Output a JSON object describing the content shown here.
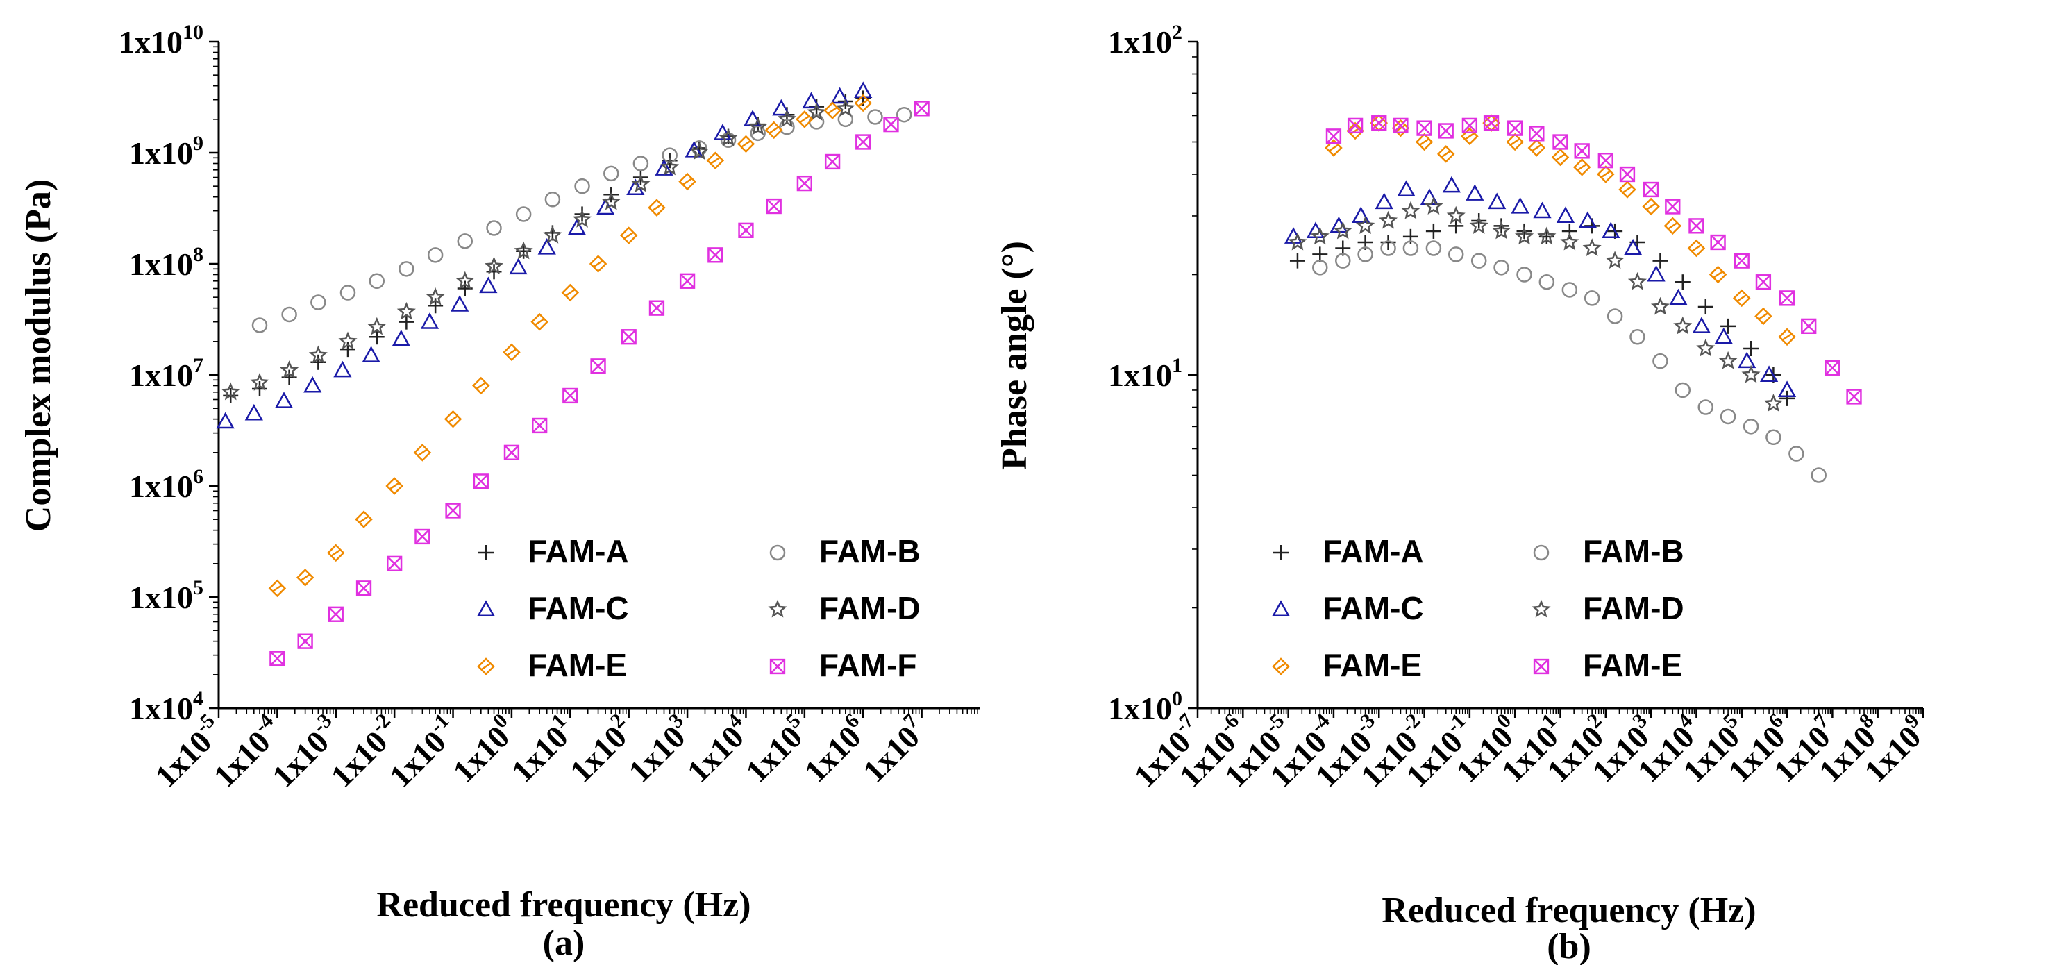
{
  "chart_data": [
    {
      "panel": "(a)",
      "type": "scatter",
      "xlabel": "Reduced frequency (Hz)",
      "ylabel": "Complex modulus (Pa)",
      "xscale": "log",
      "yscale": "log",
      "xlim": [
        1e-05,
        100000000.0
      ],
      "ylim": [
        10000.0,
        10000000000.0
      ],
      "x_tick_exps": [
        -5,
        -4,
        -3,
        -2,
        -1,
        0,
        1,
        2,
        3,
        4,
        5,
        6,
        7
      ],
      "y_tick_exps": [
        4,
        5,
        6,
        7,
        8,
        9,
        10
      ],
      "legend_placement": "bottom-right",
      "series": [
        {
          "name": "FAM-A",
          "marker": "plus",
          "color": "#222222",
          "x": [
            1.6e-05,
            5e-05,
            0.00016,
            0.0005,
            0.0016,
            0.005,
            0.016,
            0.05,
            0.16,
            0.5,
            1.6,
            5,
            16,
            50,
            160,
            500,
            1600,
            5000,
            16000,
            50000,
            160000,
            500000,
            1000000
          ],
          "y": [
            6500000.0,
            7500000.0,
            9500000.0,
            13000000.0,
            17000000.0,
            22000000.0,
            30000000.0,
            42000000.0,
            60000000.0,
            85000000.0,
            130000000.0,
            190000000.0,
            280000000.0,
            420000000.0,
            600000000.0,
            850000000.0,
            1100000000.0,
            1400000000.0,
            1800000000.0,
            2200000000.0,
            2600000000.0,
            2900000000.0,
            3100000000.0
          ]
        },
        {
          "name": "FAM-B",
          "marker": "circle",
          "color": "#888888",
          "x": [
            5e-05,
            0.00016,
            0.0005,
            0.0016,
            0.005,
            0.016,
            0.05,
            0.16,
            0.5,
            1.6,
            5,
            16,
            50,
            160,
            500,
            1600,
            5000,
            16000,
            50000,
            160000,
            500000,
            1600000,
            5000000
          ],
          "y": [
            28000000.0,
            35000000.0,
            45000000.0,
            55000000.0,
            70000000.0,
            90000000.0,
            120000000.0,
            160000000.0,
            210000000.0,
            280000000.0,
            380000000.0,
            500000000.0,
            650000000.0,
            800000000.0,
            950000000.0,
            1100000000.0,
            1300000000.0,
            1500000000.0,
            1700000000.0,
            1900000000.0,
            2000000000.0,
            2100000000.0,
            2200000000.0
          ]
        },
        {
          "name": "FAM-C",
          "marker": "triangle",
          "color": "#1a1aa8",
          "x": [
            1.3e-05,
            4e-05,
            0.00013,
            0.0004,
            0.0013,
            0.004,
            0.013,
            0.04,
            0.13,
            0.4,
            1.3,
            4,
            13,
            40,
            130,
            400,
            1300,
            4000,
            13000,
            40000,
            130000,
            400000,
            1000000
          ],
          "y": [
            3800000.0,
            4500000.0,
            5800000.0,
            8000000.0,
            11000000.0,
            15000000.0,
            21000000.0,
            30000000.0,
            43000000.0,
            63000000.0,
            93000000.0,
            140000000.0,
            210000000.0,
            320000000.0,
            480000000.0,
            720000000.0,
            1050000000.0,
            1500000000.0,
            2000000000.0,
            2500000000.0,
            2900000000.0,
            3200000000.0,
            3600000000.0
          ]
        },
        {
          "name": "FAM-D",
          "marker": "star",
          "color": "#555555",
          "x": [
            1.6e-05,
            5e-05,
            0.00016,
            0.0005,
            0.0016,
            0.005,
            0.016,
            0.05,
            0.16,
            0.5,
            1.6,
            5,
            16,
            50,
            160,
            500,
            1600,
            5000,
            16000,
            50000,
            160000,
            500000
          ],
          "y": [
            7000000.0,
            8500000.0,
            11000000.0,
            15000000.0,
            20000000.0,
            27000000.0,
            37000000.0,
            50000000.0,
            70000000.0,
            95000000.0,
            130000000.0,
            180000000.0,
            250000000.0,
            360000000.0,
            520000000.0,
            740000000.0,
            1020000000.0,
            1350000000.0,
            1700000000.0,
            2000000000.0,
            2300000000.0,
            2500000000.0
          ]
        },
        {
          "name": "FAM-E",
          "marker": "diamond",
          "color": "#f08a00",
          "x": [
            0.0001,
            0.0003,
            0.001,
            0.003,
            0.01,
            0.03,
            0.1,
            0.3,
            1,
            3,
            10,
            30,
            100,
            300,
            1000,
            3000,
            10000,
            30000,
            100000,
            300000,
            1000000
          ],
          "y": [
            120000.0,
            150000.0,
            250000.0,
            500000.0,
            1000000.0,
            2000000.0,
            4000000.0,
            8000000.0,
            16000000.0,
            30000000.0,
            55000000.0,
            100000000.0,
            180000000.0,
            320000000.0,
            550000000.0,
            850000000.0,
            1200000000.0,
            1600000000.0,
            2000000000.0,
            2400000000.0,
            2800000000.0
          ]
        },
        {
          "name": "FAM-F",
          "marker": "xbox",
          "color": "#e030e0",
          "x": [
            0.0001,
            0.0003,
            0.001,
            0.003,
            0.01,
            0.03,
            0.1,
            0.3,
            1,
            3,
            10,
            30,
            100,
            300,
            1000,
            3000,
            10000,
            30000,
            100000,
            300000,
            1000000,
            3000000,
            10000000
          ],
          "y": [
            28000.0,
            40000.0,
            70000.0,
            120000.0,
            200000.0,
            350000.0,
            600000.0,
            1100000.0,
            2000000.0,
            3500000.0,
            6500000.0,
            12000000.0,
            22000000.0,
            40000000.0,
            70000000.0,
            120000000.0,
            200000000.0,
            330000000.0,
            530000000.0,
            830000000.0,
            1250000000.0,
            1800000000.0,
            2500000000.0
          ]
        }
      ],
      "legend": [
        "FAM-A",
        "FAM-B",
        "FAM-C",
        "FAM-D",
        "FAM-E",
        "FAM-F"
      ]
    },
    {
      "panel": "(b)",
      "type": "scatter",
      "xlabel": "Reduced frequency (Hz)",
      "ylabel": "Phase angle (°)",
      "xscale": "log",
      "yscale": "log",
      "xlim": [
        1e-07,
        1000000000.0
      ],
      "ylim": [
        1,
        100
      ],
      "x_tick_exps": [
        -7,
        -6,
        -5,
        -4,
        -3,
        -2,
        -1,
        0,
        1,
        2,
        3,
        4,
        5,
        6,
        7,
        8,
        9
      ],
      "y_tick_exps": [
        0,
        1,
        2
      ],
      "legend_placement": "bottom-left",
      "series": [
        {
          "name": "FAM-A",
          "marker": "plus",
          "color": "#222222",
          "x": [
            1.6e-05,
            5e-05,
            0.00016,
            0.0005,
            0.0016,
            0.005,
            0.016,
            0.05,
            0.16,
            0.5,
            1.6,
            5,
            16,
            50,
            160,
            500,
            1600,
            5000,
            16000,
            50000,
            160000,
            500000,
            1000000
          ],
          "y": [
            22,
            23,
            24,
            25,
            25,
            26,
            27,
            28,
            29,
            28,
            27,
            26,
            27,
            28,
            27,
            25,
            22,
            19,
            16,
            14,
            12,
            10,
            8.5
          ]
        },
        {
          "name": "FAM-B",
          "marker": "circle",
          "color": "#888888",
          "x": [
            5e-05,
            0.00016,
            0.0005,
            0.0016,
            0.005,
            0.016,
            0.05,
            0.16,
            0.5,
            1.6,
            5,
            16,
            50,
            160,
            500,
            1600,
            5000,
            16000,
            50000,
            160000,
            500000,
            1600000,
            5000000
          ],
          "y": [
            21,
            22,
            23,
            24,
            24,
            24,
            23,
            22,
            21,
            20,
            19,
            18,
            17,
            15,
            13,
            11,
            9,
            8,
            7.5,
            7,
            6.5,
            5.8,
            5
          ]
        },
        {
          "name": "FAM-C",
          "marker": "triangle",
          "color": "#1a1aa8",
          "x": [
            1.3e-05,
            4e-05,
            0.00013,
            0.0004,
            0.0013,
            0.004,
            0.013,
            0.04,
            0.13,
            0.4,
            1.3,
            4,
            13,
            40,
            130,
            400,
            1300,
            4000,
            13000,
            40000,
            130000,
            400000,
            1000000
          ],
          "y": [
            26,
            27,
            28,
            30,
            33,
            36,
            34,
            37,
            35,
            33,
            32,
            31,
            30,
            29,
            27,
            24,
            20,
            17,
            14,
            13,
            11,
            10,
            9
          ]
        },
        {
          "name": "FAM-D",
          "marker": "star",
          "color": "#555555",
          "x": [
            1.6e-05,
            5e-05,
            0.00016,
            0.0005,
            0.0016,
            0.005,
            0.016,
            0.05,
            0.16,
            0.5,
            1.6,
            5,
            16,
            50,
            160,
            500,
            1600,
            5000,
            16000,
            50000,
            160000,
            500000
          ],
          "y": [
            25,
            26,
            27,
            28,
            29,
            31,
            32,
            30,
            28,
            27,
            26,
            26,
            25,
            24,
            22,
            19,
            16,
            14,
            12,
            11,
            10,
            8.2
          ]
        },
        {
          "name": "FAM-E",
          "marker": "diamond",
          "color": "#f08a00",
          "x": [
            0.0001,
            0.0003,
            0.001,
            0.003,
            0.01,
            0.03,
            0.1,
            0.3,
            1,
            3,
            10,
            30,
            100,
            300,
            1000,
            3000,
            10000,
            30000,
            100000,
            300000,
            1000000
          ],
          "y": [
            48,
            54,
            57,
            55,
            50,
            46,
            52,
            57,
            50,
            48,
            45,
            42,
            40,
            36,
            32,
            28,
            24,
            20,
            17,
            15,
            13
          ]
        },
        {
          "name": "FAM-E",
          "marker": "xbox",
          "color": "#e030e0",
          "x": [
            0.0001,
            0.0003,
            0.001,
            0.003,
            0.01,
            0.03,
            0.1,
            0.3,
            1,
            3,
            10,
            30,
            100,
            300,
            1000,
            3000,
            10000,
            30000,
            100000,
            300000,
            1000000,
            3000000,
            10000000,
            30000000
          ],
          "y": [
            52,
            56,
            57,
            56,
            55,
            54,
            56,
            57,
            55,
            53,
            50,
            47,
            44,
            40,
            36,
            32,
            28,
            25,
            22,
            19,
            17,
            14,
            10.5,
            8.6
          ]
        }
      ],
      "legend": [
        "FAM-A",
        "FAM-B",
        "FAM-C",
        "FAM-D",
        "FAM-E",
        "FAM-E"
      ]
    }
  ]
}
